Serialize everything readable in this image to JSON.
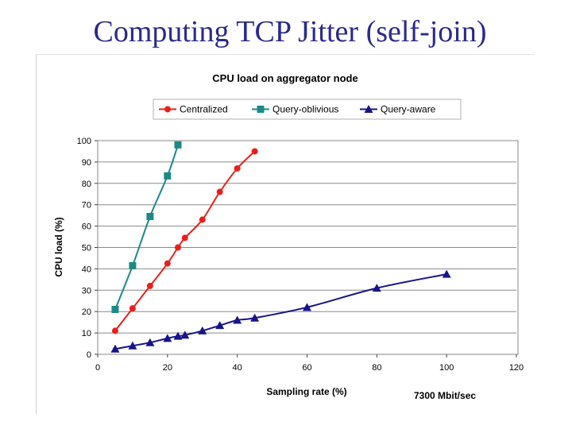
{
  "slide": {
    "title": "Computing TCP Jitter (self-join)"
  },
  "chart_data": {
    "type": "line",
    "title": "CPU load on aggregator node",
    "xlabel": "Sampling rate (%)",
    "ylabel": "CPU load (%)",
    "annotation": "7300 Mbit/sec",
    "xlim": [
      0,
      120
    ],
    "ylim": [
      0,
      100
    ],
    "x_ticks": [
      0,
      20,
      40,
      60,
      80,
      100,
      120
    ],
    "y_ticks": [
      0,
      10,
      20,
      30,
      40,
      50,
      60,
      70,
      80,
      90,
      100
    ],
    "grid": "horizontal",
    "legend_position": "top-right",
    "series": [
      {
        "name": "Centralized",
        "color": "#e8201b",
        "marker": "circle",
        "points": [
          [
            5,
            11
          ],
          [
            10,
            21.5
          ],
          [
            15,
            32
          ],
          [
            20,
            42.5
          ],
          [
            23,
            50
          ],
          [
            25,
            54.5
          ],
          [
            30,
            63
          ],
          [
            35,
            76
          ],
          [
            40,
            87
          ],
          [
            45,
            95
          ]
        ]
      },
      {
        "name": "Query-oblivious",
        "color": "#1b8a87",
        "marker": "square",
        "points": [
          [
            5,
            21
          ],
          [
            10,
            41.5
          ],
          [
            15,
            64.5
          ],
          [
            20,
            83.5
          ],
          [
            23,
            98
          ]
        ]
      },
      {
        "name": "Query-aware",
        "color": "#17148a",
        "marker": "triangle",
        "points": [
          [
            5,
            2.5
          ],
          [
            10,
            4
          ],
          [
            15,
            5.5
          ],
          [
            20,
            7.5
          ],
          [
            23,
            8.5
          ],
          [
            25,
            9
          ],
          [
            30,
            11
          ],
          [
            35,
            13.5
          ],
          [
            40,
            16
          ],
          [
            45,
            17
          ],
          [
            60,
            22
          ],
          [
            80,
            31
          ],
          [
            100,
            37.5
          ]
        ]
      }
    ]
  }
}
